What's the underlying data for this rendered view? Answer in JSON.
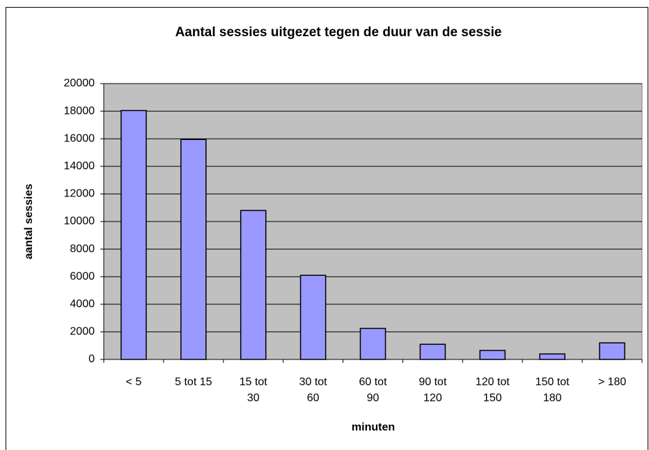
{
  "chart_data": {
    "type": "bar",
    "title": "Aantal sessies uitgezet tegen de duur van de sessie",
    "x_label": "minuten",
    "y_label": "aantal sessies",
    "categories": [
      "< 5",
      "5 tot 15",
      "15 tot 30",
      "30 tot 60",
      "60 tot 90",
      "90 tot 120",
      "120 tot 150",
      "150 tot 180",
      "> 180"
    ],
    "values": [
      18050,
      15950,
      10800,
      6100,
      2250,
      1100,
      650,
      400,
      1200
    ],
    "color": "#9999ff",
    "ylim": [
      0,
      20000
    ],
    "yticks": [
      0,
      2000,
      4000,
      6000,
      8000,
      10000,
      12000,
      14000,
      16000,
      18000,
      20000
    ],
    "grid": true
  }
}
